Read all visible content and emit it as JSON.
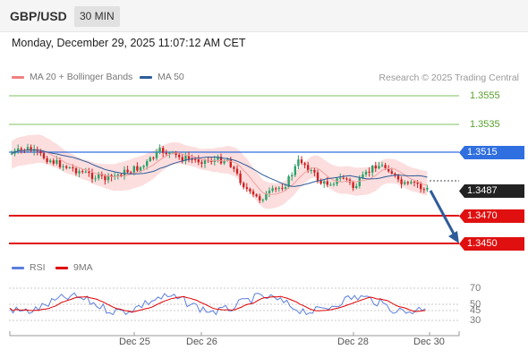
{
  "header": {
    "symbol": "GBP/USD",
    "timeframe": "30 MIN"
  },
  "timestamp": "Monday, December 29, 2025 11:07:12 AM CET",
  "legend": {
    "price": [
      {
        "label": "MA 20 + Bollinger Bands",
        "color": "#f08080"
      },
      {
        "label": "MA 50",
        "color": "#2f5c99"
      }
    ],
    "rsi": [
      {
        "label": "RSI",
        "color": "#5b7fdc"
      },
      {
        "label": "9MA",
        "color": "#e00000"
      }
    ]
  },
  "credit": "Research © 2025 Trading Central",
  "levels": {
    "r3": {
      "label": "1.3555",
      "color": "#5aa02c"
    },
    "r2": {
      "label": "1.3535",
      "color": "#5aa02c"
    },
    "r1": {
      "label": "1.3515",
      "color": "#2f6fe0"
    },
    "last": {
      "label": "1.3487",
      "color": "#222222"
    },
    "s1": {
      "label": "1.3470",
      "color": "#e01010"
    },
    "s2": {
      "label": "1.3450",
      "color": "#e01010"
    }
  },
  "rsi_axis": [
    "70",
    "50",
    "45",
    "30"
  ],
  "x_axis": [
    "Dec 25",
    "Dec 26",
    "Dec 28",
    "Dec 30"
  ],
  "colors": {
    "bull": "#29a36a",
    "bear": "#d02020",
    "band": "#fbd3d3",
    "arrow": "#2f5c99"
  }
}
